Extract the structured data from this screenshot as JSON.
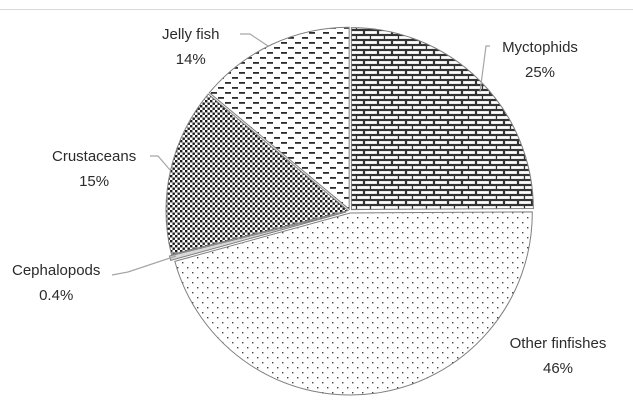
{
  "chart_data": {
    "type": "pie",
    "title": "",
    "slices": [
      {
        "label": "Myctophids",
        "value": 25,
        "value_label": "25%",
        "pattern": "brick",
        "fill": "#3a3a3a"
      },
      {
        "label": "Other finfishes",
        "value": 46,
        "value_label": "46%",
        "pattern": "sparse-dots",
        "fill": "#555555"
      },
      {
        "label": "Cephalopods",
        "value": 0.4,
        "value_label": "0.4%",
        "pattern": "solid-light",
        "fill": "#bfbfbf"
      },
      {
        "label": "Crustaceans",
        "value": 15,
        "value_label": "15%",
        "pattern": "dense-dots",
        "fill": "#1a1a1a"
      },
      {
        "label": "Jelly fish",
        "value": 14,
        "value_label": "14%",
        "pattern": "dashes",
        "fill": "#2b2b2b"
      }
    ],
    "legend": "none",
    "data_labels": "outside-with-leader-lines",
    "start_angle_deg": 0,
    "direction": "clockwise"
  }
}
